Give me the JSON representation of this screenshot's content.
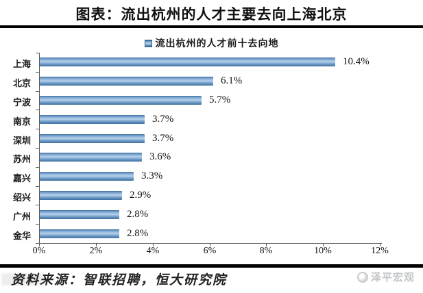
{
  "header": {
    "title": "图表：流出杭州的人才主要去向上海北京"
  },
  "chart_data": {
    "type": "bar",
    "orientation": "horizontal",
    "title": "流出杭州的人才前十去向地",
    "categories": [
      "上海",
      "北京",
      "宁波",
      "南京",
      "深圳",
      "苏州",
      "嘉兴",
      "绍兴",
      "广州",
      "金华"
    ],
    "values": [
      10.4,
      6.1,
      5.7,
      3.7,
      3.7,
      3.6,
      3.3,
      2.9,
      2.8,
      2.8
    ],
    "value_labels": [
      "10.4%",
      "6.1%",
      "5.7%",
      "3.7%",
      "3.7%",
      "3.6%",
      "3.3%",
      "2.9%",
      "2.8%",
      "2.8%"
    ],
    "xlabel": "",
    "ylabel": "",
    "xlim": [
      0,
      12
    ],
    "x_ticks": [
      "0%",
      "2%",
      "4%",
      "6%",
      "8%",
      "10%",
      "12%"
    ],
    "x_tick_values": [
      0,
      2,
      4,
      6,
      8,
      10,
      12
    ],
    "grid": false,
    "legend_position": "top-center",
    "legend_marker_color": "#6f9bc8",
    "bar_color": "#6f9bc8",
    "bar_edge_color": "#3e6d9c"
  },
  "footer": {
    "source": "资料来源：智联招聘，恒大研究院",
    "watermark": "泽平宏观"
  }
}
